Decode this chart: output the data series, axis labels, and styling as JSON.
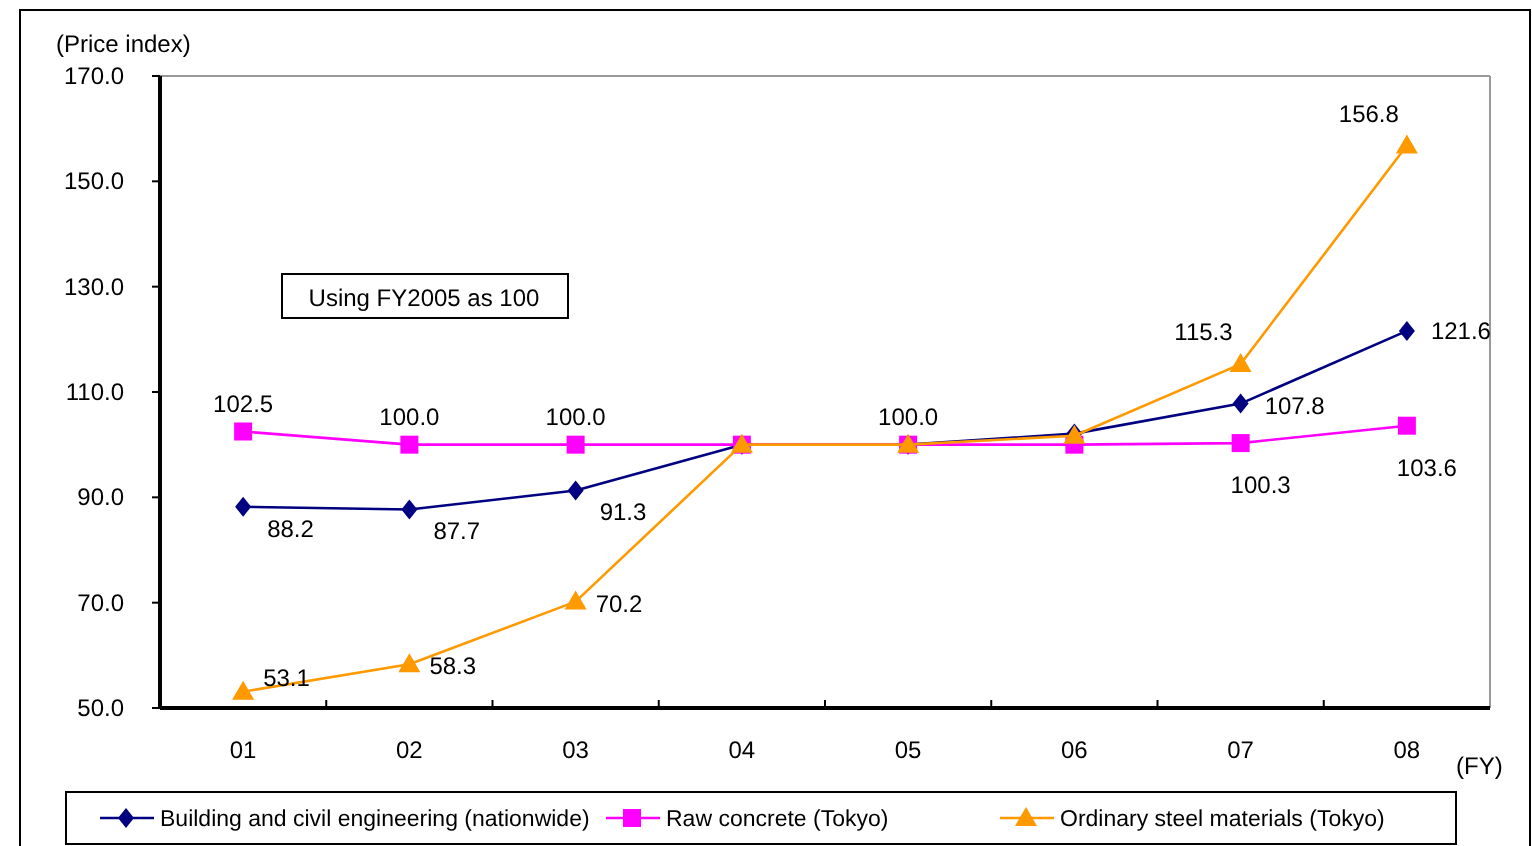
{
  "chart_data": {
    "type": "line",
    "ylabel": "(Price index)",
    "xlabel": "(FY)",
    "categories": [
      "01",
      "02",
      "03",
      "04",
      "05",
      "06",
      "07",
      "08"
    ],
    "series": [
      {
        "name": "Building and civil engineering (nationwide)",
        "color": "#000080",
        "marker": "diamond",
        "values": [
          88.2,
          87.7,
          91.3,
          100,
          100,
          102.1,
          107.8,
          121.6
        ],
        "value_labels": [
          "88.2",
          "87.7",
          "91.3",
          null,
          null,
          null,
          "107.8",
          "121.6"
        ]
      },
      {
        "name": "Raw concrete (Tokyo)",
        "color": "#ff00ff",
        "marker": "square",
        "values": [
          102.5,
          100.0,
          100.0,
          100,
          100.0,
          100,
          100.3,
          103.6
        ],
        "value_labels": [
          "102.5",
          "100.0",
          "100.0",
          null,
          "100.0",
          null,
          "100.3",
          "103.6"
        ]
      },
      {
        "name": "Ordinary steel materials (Tokyo)",
        "color": "#ff9900",
        "marker": "triangle",
        "values": [
          53.1,
          58.3,
          70.2,
          100,
          100,
          101.7,
          115.3,
          156.8
        ],
        "value_labels": [
          "53.1",
          "58.3",
          "70.2",
          null,
          null,
          null,
          "115.3",
          "156.8"
        ]
      }
    ],
    "ylim": [
      50,
      170
    ],
    "yticks": [
      {
        "value": 50,
        "label": "50.0"
      },
      {
        "value": 70,
        "label": "70.0"
      },
      {
        "value": 90,
        "label": "90.0"
      },
      {
        "value": 110,
        "label": "110.0"
      },
      {
        "value": 130,
        "label": "130.0"
      },
      {
        "value": 150,
        "label": "150.0"
      },
      {
        "value": 170,
        "label": "170.0"
      }
    ],
    "annotations": [
      "Using FY2005 as 100"
    ],
    "legend": "bottom",
    "grid": false
  }
}
